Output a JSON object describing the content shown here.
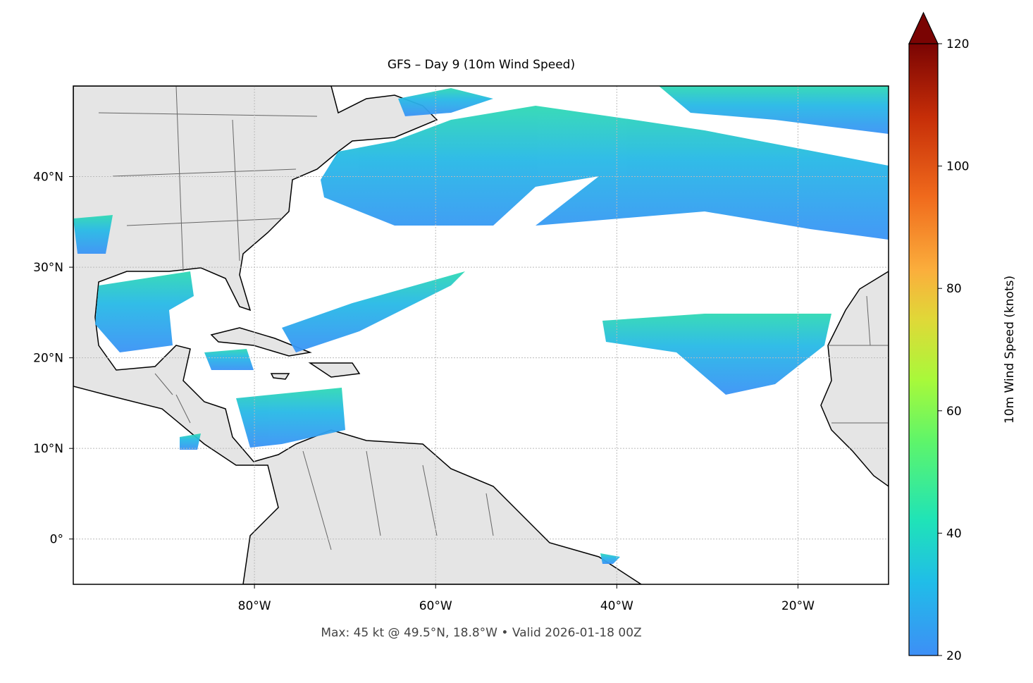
{
  "chart_data": {
    "type": "map",
    "title": "GFS – Day 9 (10m Wind Speed)",
    "footer": "Max: 45 kt @ 49.5°N, 18.8°W • Valid 2026-01-18 00Z",
    "xlim": [
      -100,
      -10
    ],
    "ylim": [
      -5,
      50
    ],
    "xticks": [
      {
        "value": -80,
        "label": "80°W"
      },
      {
        "value": -60,
        "label": "60°W"
      },
      {
        "value": -40,
        "label": "40°W"
      },
      {
        "value": -20,
        "label": "20°W"
      }
    ],
    "yticks": [
      {
        "value": 0,
        "label": "0°"
      },
      {
        "value": 10,
        "label": "10°N"
      },
      {
        "value": 20,
        "label": "20°N"
      },
      {
        "value": 30,
        "label": "30°N"
      },
      {
        "value": 40,
        "label": "40°N"
      }
    ],
    "grid": true,
    "colorbar": {
      "label": "10m Wind Speed (knots)",
      "lim": [
        20,
        120
      ],
      "ticks": [
        20,
        40,
        60,
        80,
        100,
        120
      ]
    }
  }
}
